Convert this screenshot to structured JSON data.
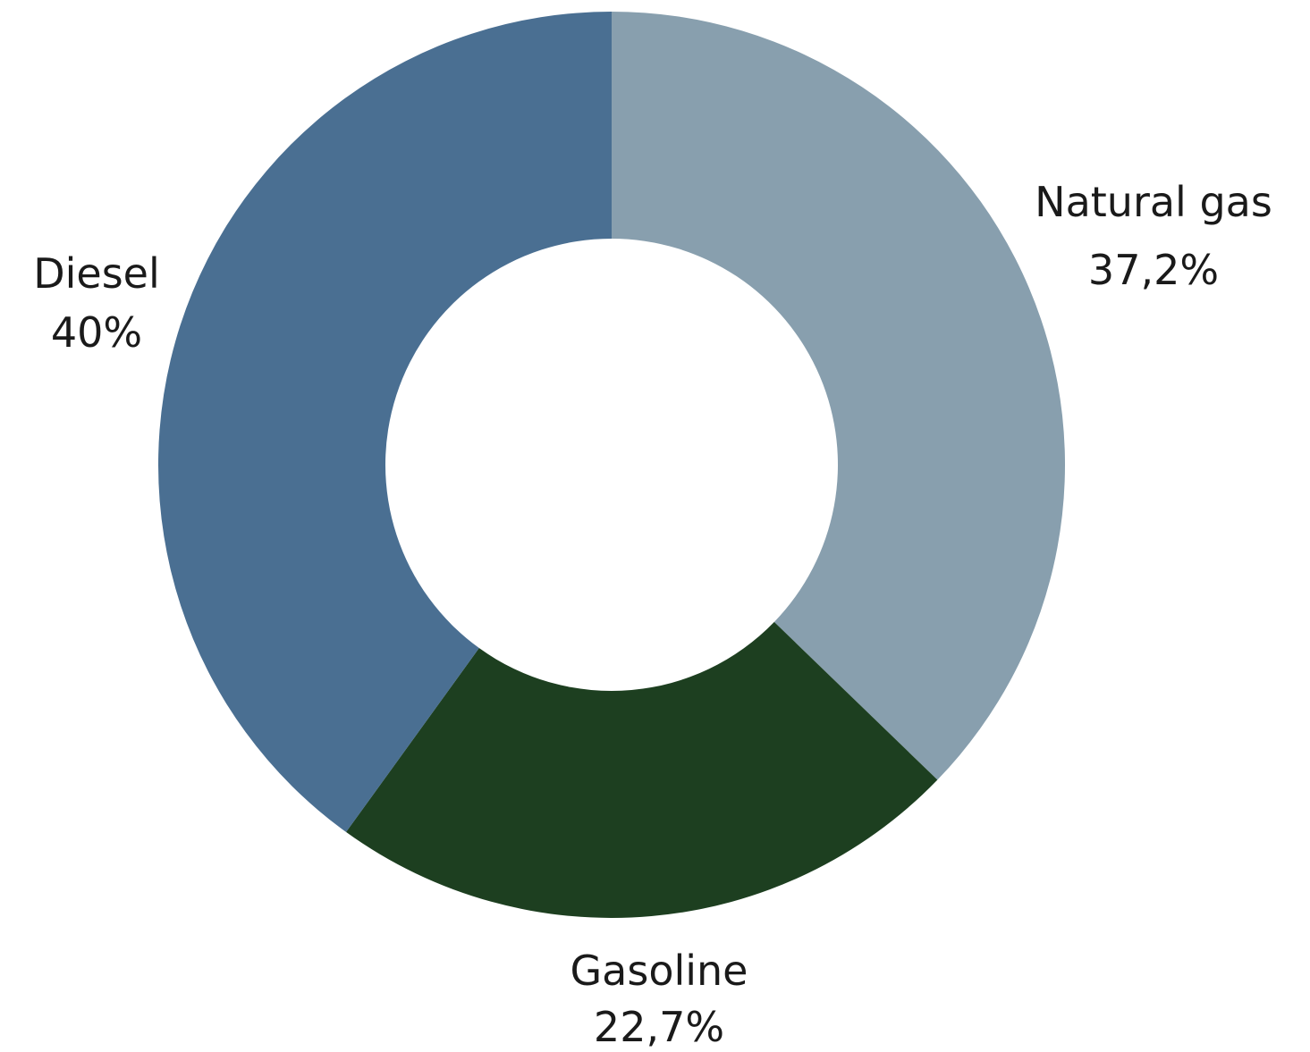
{
  "chart_data": {
    "type": "pie",
    "variant": "donut",
    "slices": [
      {
        "label": "Natural gas",
        "value": 37.2,
        "display": "37,2%",
        "color": "#889fae"
      },
      {
        "label": "Gasoline",
        "value": 22.7,
        "display": "22,7%",
        "color": "#1d3f20"
      },
      {
        "label": "Diesel",
        "value": 40.0,
        "display": "40%",
        "color": "#4a6f92"
      }
    ],
    "start": "12 o'clock",
    "direction": "clockwise",
    "legend": "none"
  }
}
